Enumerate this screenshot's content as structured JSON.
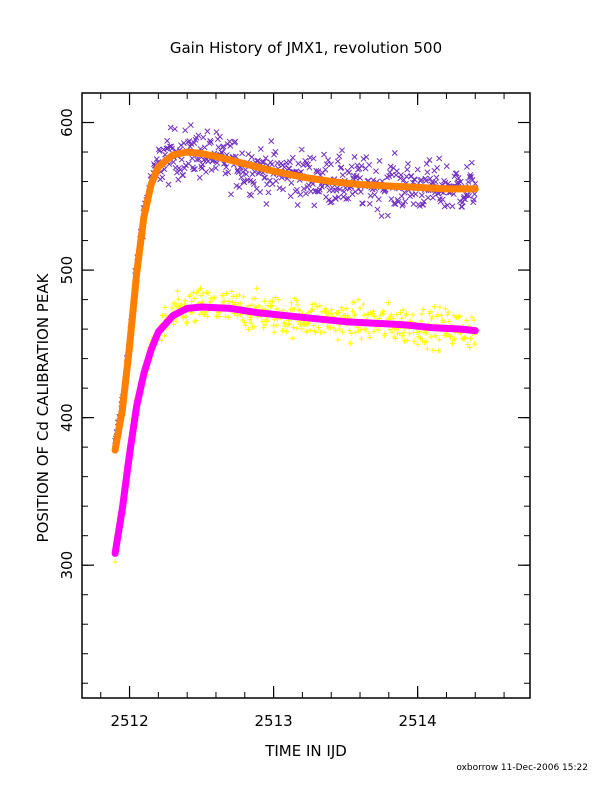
{
  "chart_data": {
    "type": "scatter",
    "title": "Gain History of JMX1, revolution 500",
    "xlabel": "TIME IN IJD",
    "ylabel": "POSITION OF Cd CALIBRATION PEAK",
    "xlim": [
      2511.67,
      2514.78
    ],
    "ylim": [
      210,
      620
    ],
    "x_ticks": [
      2512,
      2513,
      2514
    ],
    "y_ticks": [
      300,
      400,
      500,
      600
    ],
    "grid": false,
    "footer": "oxborrow 11-Dec-2006 15:22",
    "series": [
      {
        "marker": "x",
        "color": "#7030c0",
        "x_range": [
          2511.9,
          2514.4
        ],
        "trend": [
          [
            2511.9,
            380
          ],
          [
            2511.95,
            410
          ],
          [
            2512.0,
            450
          ],
          [
            2512.05,
            500
          ],
          [
            2512.1,
            540
          ],
          [
            2512.15,
            560
          ],
          [
            2512.2,
            572
          ],
          [
            2512.3,
            578
          ],
          [
            2512.4,
            580
          ],
          [
            2512.5,
            579
          ],
          [
            2512.6,
            576
          ],
          [
            2512.8,
            570
          ],
          [
            2513.0,
            566
          ],
          [
            2513.3,
            562
          ],
          [
            2513.6,
            559
          ],
          [
            2513.9,
            557
          ],
          [
            2514.2,
            556
          ],
          [
            2514.4,
            556
          ]
        ],
        "scatter_spread": 12
      },
      {
        "marker": "+",
        "color": "#ffff00",
        "x_range": [
          2511.9,
          2514.4
        ],
        "trend": [
          [
            2511.9,
            308
          ],
          [
            2511.95,
            340
          ],
          [
            2512.0,
            380
          ],
          [
            2512.05,
            410
          ],
          [
            2512.1,
            430
          ],
          [
            2512.15,
            445
          ],
          [
            2512.2,
            458
          ],
          [
            2512.3,
            468
          ],
          [
            2512.4,
            474
          ],
          [
            2512.5,
            475
          ],
          [
            2512.7,
            474
          ],
          [
            2513.0,
            470
          ],
          [
            2513.3,
            467
          ],
          [
            2513.6,
            465
          ],
          [
            2513.9,
            463
          ],
          [
            2514.2,
            461
          ],
          [
            2514.4,
            459
          ]
        ],
        "scatter_spread": 9
      },
      {
        "marker": "line",
        "color": "#ff8000",
        "points": [
          [
            2511.9,
            378
          ],
          [
            2511.95,
            405
          ],
          [
            2512.0,
            448
          ],
          [
            2512.05,
            498
          ],
          [
            2512.1,
            536
          ],
          [
            2512.15,
            558
          ],
          [
            2512.2,
            570
          ],
          [
            2512.3,
            578
          ],
          [
            2512.4,
            580
          ],
          [
            2512.5,
            579
          ],
          [
            2512.6,
            577
          ],
          [
            2512.8,
            572
          ],
          [
            2513.0,
            567
          ],
          [
            2513.2,
            563
          ],
          [
            2513.4,
            560
          ],
          [
            2513.6,
            558
          ],
          [
            2513.8,
            557
          ],
          [
            2514.0,
            556
          ],
          [
            2514.2,
            555
          ],
          [
            2514.4,
            555
          ]
        ]
      },
      {
        "marker": "line",
        "color": "#ff00ff",
        "points": [
          [
            2511.9,
            308
          ],
          [
            2511.95,
            338
          ],
          [
            2512.0,
            375
          ],
          [
            2512.05,
            408
          ],
          [
            2512.1,
            430
          ],
          [
            2512.15,
            446
          ],
          [
            2512.2,
            458
          ],
          [
            2512.3,
            469
          ],
          [
            2512.4,
            474
          ],
          [
            2512.5,
            475
          ],
          [
            2512.7,
            474
          ],
          [
            2512.9,
            471
          ],
          [
            2513.1,
            469
          ],
          [
            2513.3,
            467
          ],
          [
            2513.5,
            465
          ],
          [
            2513.7,
            464
          ],
          [
            2513.9,
            463
          ],
          [
            2514.1,
            461
          ],
          [
            2514.3,
            460
          ],
          [
            2514.4,
            459
          ]
        ]
      }
    ]
  }
}
